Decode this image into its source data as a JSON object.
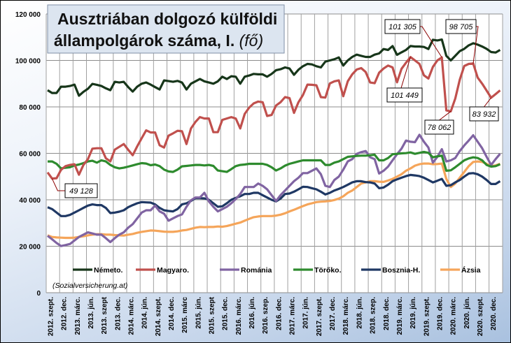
{
  "chart_data": {
    "type": "line",
    "title_line1": "Ausztriában dolgozó külföldi",
    "title_line2": "állampolgárok száma, I.",
    "title_unit": "(fő)",
    "source": "(Sozialversicherung.at)",
    "xlabel": "",
    "ylabel": "",
    "ylim": [
      0,
      120000
    ],
    "y_ticks": [
      {
        "value": 0,
        "label": "0"
      },
      {
        "value": 20000,
        "label": "20 000"
      },
      {
        "value": 40000,
        "label": "40 000"
      },
      {
        "value": 60000,
        "label": "60 000"
      },
      {
        "value": 80000,
        "label": "80 000"
      },
      {
        "value": 100000,
        "label": "100 000"
      },
      {
        "value": 120000,
        "label": "120 000"
      }
    ],
    "grid": true,
    "x_frequency": "monthly, 2012 Sep – 2021 Feb",
    "x_labels": [
      "2012. szept.",
      "2012. dec.",
      "2013. márc.",
      "2013. jún.",
      "2013. szept",
      "2013. dec.",
      "2014. márc.",
      "2014. jún.",
      "2014. szept.",
      "2014. dec.",
      "2015. márc",
      "2015. jún.",
      "2015. szept",
      "2015. dec.",
      "2016. márc.",
      "2016. jún.",
      "2016. szep.",
      "2016. dec.",
      "2017. márc.",
      "2017. jún.",
      "2017. szept.",
      "2017. dec.",
      "2018. márc.",
      "2018. jún.",
      "2018. szep.",
      "2018. dec.",
      "2019. márc.",
      "2019. jún.",
      "2019. szept.",
      "2019. dec.",
      "2020. márc.",
      "2020. jún.",
      "2020. szept.",
      "2020. dec."
    ],
    "legend_position": "bottom-inside",
    "series": [
      {
        "name": "Németo.",
        "color": "#17361a",
        "values": [
          87200,
          86000,
          86000,
          88700,
          88700,
          89000,
          89600,
          84800,
          86500,
          87800,
          89900,
          89500,
          89000,
          88000,
          87200,
          90800,
          90500,
          90800,
          88500,
          86600,
          88700,
          90000,
          90500,
          89600,
          88500,
          87500,
          91400,
          91100,
          90800,
          91200,
          90500,
          87500,
          90000,
          91000,
          92000,
          91000,
          90500,
          90000,
          91000,
          93000,
          92000,
          93200,
          93000,
          90000,
          93000,
          93500,
          94200,
          94000,
          94000,
          93000,
          94200,
          95800,
          96200,
          97000,
          96500,
          93800,
          96000,
          97500,
          98500,
          98300,
          97500,
          97000,
          99500,
          100000,
          100500,
          101300,
          97800,
          100000,
          101500,
          102500,
          102000,
          101500,
          101500,
          102500,
          103000,
          104900,
          104500,
          106200,
          102400,
          103500,
          104500,
          106200,
          106000,
          106000,
          105800,
          104900,
          108900,
          108600,
          109000,
          102000,
          100000,
          102000,
          104000,
          105000,
          106500,
          107400,
          106800,
          106000,
          105000,
          103600,
          103400,
          104500
        ]
      },
      {
        "name": "Magyaro.",
        "color": "#c0504d",
        "values": [
          51800,
          49128,
          49300,
          52900,
          54500,
          55000,
          55300,
          50800,
          55000,
          57500,
          62000,
          62200,
          62200,
          57900,
          56500,
          61600,
          62800,
          64000,
          61500,
          59200,
          63000,
          66500,
          69900,
          69000,
          69000,
          63500,
          62500,
          67600,
          68600,
          69700,
          69500,
          64000,
          70700,
          73500,
          75600,
          75000,
          75000,
          69100,
          69100,
          74400,
          75000,
          75600,
          75000,
          70700,
          77000,
          79700,
          81500,
          82300,
          82000,
          76100,
          76500,
          80600,
          82000,
          84200,
          83800,
          77400,
          82000,
          85100,
          89600,
          89500,
          89300,
          84200,
          84000,
          90100,
          91000,
          91400,
          84600,
          91000,
          94000,
          96100,
          96700,
          95000,
          90500,
          90200,
          94700,
          96500,
          97800,
          97000,
          90600,
          96400,
          99000,
          101449,
          100000,
          98500,
          93600,
          92200,
          97200,
          100000,
          101305,
          78500,
          78062,
          83600,
          91700,
          97600,
          98500,
          98705,
          92600,
          90000,
          87000,
          83932,
          85500,
          87100
        ]
      },
      {
        "name": "Románia",
        "color": "#8064a2",
        "values": [
          24500,
          23000,
          21400,
          20100,
          20500,
          21000,
          22500,
          24000,
          25000,
          26000,
          25500,
          25000,
          25000,
          23500,
          21800,
          23500,
          25000,
          26000,
          28000,
          29500,
          32000,
          34500,
          35500,
          35500,
          37500,
          35000,
          34000,
          31000,
          32000,
          33000,
          33700,
          37000,
          39800,
          41000,
          41000,
          43000,
          39300,
          37000,
          35000,
          36000,
          37000,
          38500,
          40300,
          42500,
          45500,
          45500,
          45500,
          47000,
          46000,
          44500,
          42000,
          39500,
          42000,
          44000,
          46000,
          48000,
          49500,
          51500,
          51500,
          52500,
          53500,
          51000,
          46000,
          45500,
          48500,
          50000,
          53000,
          56500,
          57500,
          59800,
          60500,
          61000,
          58300,
          57500,
          51300,
          52500,
          54300,
          57000,
          59600,
          62000,
          65500,
          65000,
          64800,
          68000,
          65000,
          62500,
          56000,
          58500,
          61800,
          56500,
          57000,
          58000,
          61000,
          63400,
          65500,
          67800,
          65000,
          62200,
          58500,
          55000,
          57500,
          59800
        ]
      },
      {
        "name": "Törőko.",
        "color": "#2e8b2e",
        "values": [
          56500,
          56500,
          55500,
          53500,
          53800,
          54000,
          54800,
          55200,
          55800,
          56500,
          56800,
          56000,
          57000,
          56500,
          55000,
          54000,
          53500,
          53800,
          54300,
          54800,
          55300,
          55800,
          55600,
          54900,
          55200,
          54500,
          53000,
          52200,
          52000,
          53000,
          54400,
          54600,
          54800,
          55000,
          55000,
          54800,
          55000,
          54600,
          52600,
          52300,
          52000,
          53200,
          54500,
          55000,
          55200,
          55500,
          55500,
          55500,
          55500,
          55000,
          54000,
          52600,
          53500,
          54700,
          55500,
          56000,
          56500,
          57000,
          57000,
          57000,
          57000,
          57000,
          55000,
          55000,
          56000,
          56500,
          57500,
          58500,
          58700,
          58900,
          59000,
          59000,
          59200,
          59400,
          57000,
          57000,
          58000,
          59600,
          59800,
          60000,
          60100,
          60400,
          59800,
          60200,
          60600,
          60200,
          58300,
          58700,
          59000,
          52500,
          52700,
          54000,
          55500,
          57000,
          57800,
          58300,
          58000,
          57000,
          55000,
          54300,
          54500,
          55300
        ]
      },
      {
        "name": "Bosznia-H.",
        "color": "#1f3864",
        "values": [
          36800,
          36000,
          34500,
          33000,
          33000,
          33500,
          34500,
          35500,
          36500,
          37500,
          38000,
          37700,
          37700,
          36500,
          34300,
          34500,
          34900,
          35500,
          36800,
          37700,
          38500,
          39000,
          38900,
          38800,
          38000,
          36500,
          35500,
          35200,
          35000,
          36000,
          38000,
          38500,
          39500,
          40700,
          40700,
          40600,
          40000,
          38500,
          37000,
          37200,
          38500,
          40000,
          40800,
          41500,
          42500,
          42500,
          43000,
          43000,
          42000,
          41000,
          40000,
          39300,
          40500,
          42500,
          42700,
          43500,
          44500,
          45600,
          45500,
          45000,
          44500,
          43500,
          42300,
          43000,
          44000,
          44700,
          45500,
          46500,
          47500,
          48000,
          48000,
          47600,
          47500,
          47000,
          45000,
          45300,
          46500,
          48000,
          48800,
          49500,
          50200,
          50700,
          50500,
          50200,
          49500,
          48500,
          47500,
          48200,
          49000,
          46000,
          46300,
          47500,
          48500,
          50000,
          51300,
          51500,
          51000,
          50000,
          48500,
          46800,
          46800,
          48000
        ]
      },
      {
        "name": "Ázsia",
        "color": "#f5a55a",
        "values": [
          24700,
          24000,
          23800,
          23700,
          23600,
          23600,
          23700,
          24000,
          24300,
          24700,
          25000,
          25200,
          25200,
          25000,
          25000,
          24800,
          24700,
          24600,
          25000,
          25300,
          25800,
          26200,
          26500,
          26800,
          26700,
          26500,
          26300,
          26200,
          26200,
          26400,
          26800,
          27000,
          27500,
          28000,
          28300,
          28200,
          28300,
          28300,
          28500,
          28400,
          28700,
          29200,
          29700,
          30200,
          31000,
          31800,
          32500,
          32800,
          33000,
          33000,
          33000,
          33200,
          33600,
          34200,
          35000,
          35700,
          36500,
          37300,
          38000,
          38500,
          39000,
          39200,
          39300,
          39500,
          39900,
          40500,
          41500,
          43000,
          44000,
          45500,
          47000,
          47500,
          48000,
          48000,
          47800,
          47700,
          48300,
          49000,
          50000,
          51000,
          52500,
          53500,
          54700,
          55300,
          55600,
          55600,
          55300,
          55400,
          55600,
          49000,
          45500,
          47000,
          49500,
          52000,
          54500,
          56300,
          56500,
          56300,
          55500,
          54500,
          54800,
          55500
        ]
      }
    ],
    "annotations": [
      {
        "label": "49 128",
        "series": "Magyaro.",
        "index": 1
      },
      {
        "label": "101 305",
        "series": "Magyaro.",
        "index": 88
      },
      {
        "label": "98 705",
        "series": "Magyaro.",
        "index": 95
      },
      {
        "label": "101 449",
        "series": "Magyaro.",
        "index": 81
      },
      {
        "label": "78 062",
        "series": "Magyaro.",
        "index": 90
      },
      {
        "label": "83 932",
        "series": "Magyaro.",
        "index": 99
      }
    ]
  }
}
